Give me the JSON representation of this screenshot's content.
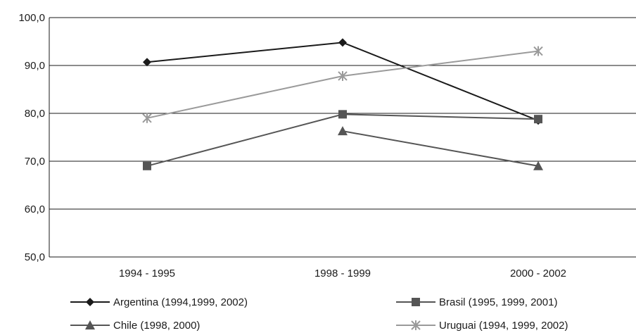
{
  "chart_data": {
    "type": "line",
    "title": "",
    "xlabel": "",
    "ylabel": "",
    "categories": [
      "1994 - 1995",
      "1998 - 1999",
      "2000 - 2002"
    ],
    "ylim": [
      50,
      100
    ],
    "yticks": [
      50,
      60,
      70,
      80,
      90,
      100
    ],
    "ytick_labels": [
      "50,0",
      "60,0",
      "70,0",
      "80,0",
      "90,0",
      "100,0"
    ],
    "grid": "horizontal",
    "legend_position": "bottom",
    "series": [
      {
        "name": "Argentina (1994,1999, 2002)",
        "values": [
          90.7,
          94.8,
          78.5
        ],
        "color": "#1a1a1a",
        "marker": "diamond"
      },
      {
        "name": "Brasil (1995, 1999, 2001)",
        "values": [
          69.0,
          79.8,
          78.8
        ],
        "color": "#555555",
        "marker": "square"
      },
      {
        "name": "Chile (1998, 2000)",
        "values": [
          null,
          76.3,
          69.0
        ],
        "color": "#555555",
        "marker": "triangle"
      },
      {
        "name": "Uruguai (1994, 1999, 2002)",
        "values": [
          79.0,
          87.8,
          93.0
        ],
        "color": "#9a9a9a",
        "marker": "asterisk"
      }
    ]
  }
}
